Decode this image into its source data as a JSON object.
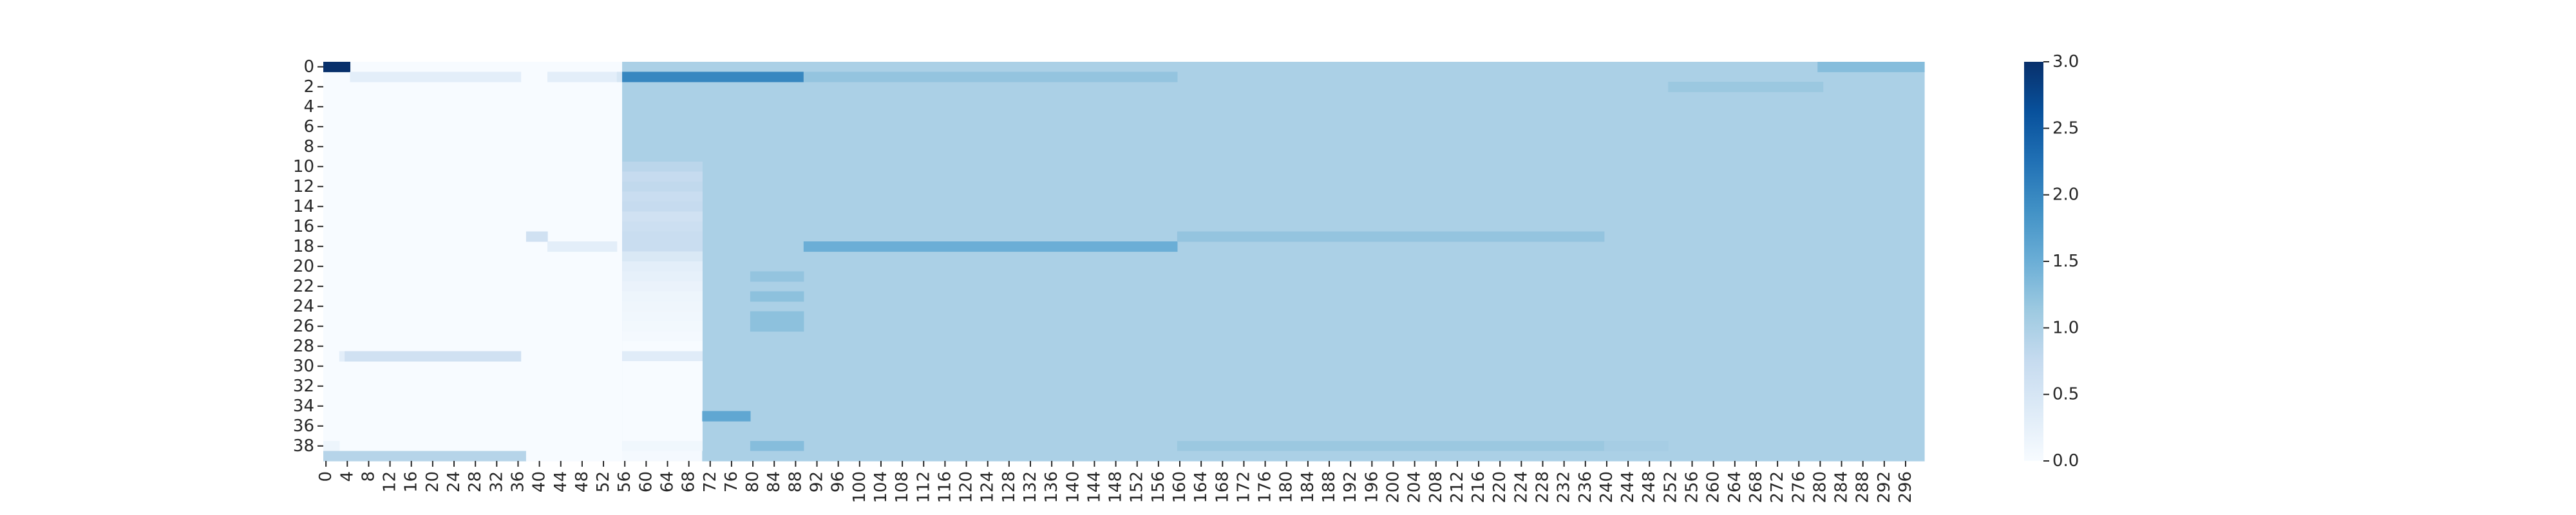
{
  "chart_data": {
    "type": "heatmap",
    "title": "",
    "xlabel": "",
    "ylabel": "",
    "n_rows": 40,
    "n_cols": 300,
    "x_tick_labels": [
      "0",
      "4",
      "8",
      "12",
      "16",
      "20",
      "24",
      "28",
      "32",
      "36",
      "40",
      "44",
      "48",
      "52",
      "56",
      "60",
      "64",
      "68",
      "72",
      "76",
      "80",
      "84",
      "88",
      "92",
      "96",
      "100",
      "104",
      "108",
      "112",
      "116",
      "120",
      "124",
      "128",
      "132",
      "136",
      "140",
      "144",
      "148",
      "152",
      "156",
      "160",
      "164",
      "168",
      "172",
      "176",
      "180",
      "184",
      "188",
      "192",
      "196",
      "200",
      "204",
      "208",
      "212",
      "216",
      "220",
      "224",
      "228",
      "232",
      "236",
      "240",
      "244",
      "248",
      "252",
      "256",
      "260",
      "264",
      "268",
      "272",
      "276",
      "280",
      "284",
      "288",
      "292",
      "296"
    ],
    "y_tick_labels": [
      "0",
      "2",
      "4",
      "6",
      "8",
      "10",
      "12",
      "14",
      "16",
      "18",
      "20",
      "22",
      "24",
      "26",
      "28",
      "30",
      "32",
      "34",
      "36",
      "38"
    ],
    "colorbar": {
      "min": 0.0,
      "max": 3.0,
      "ticks": [
        "0.0",
        "0.5",
        "1.0",
        "1.5",
        "2.0",
        "2.5",
        "3.0"
      ],
      "colormap": "Blues"
    },
    "background_value": 1.0,
    "cells": [
      {
        "row": [
          0,
          39
        ],
        "col": [
          0,
          56
        ],
        "value": 0.0
      },
      {
        "row": [
          0,
          39
        ],
        "col": [
          56,
          300
        ],
        "value": 1.0
      },
      {
        "row": [
          0,
          1
        ],
        "col": [
          0,
          5
        ],
        "value": 3.0
      },
      {
        "row": [
          1,
          2
        ],
        "col": [
          5,
          37
        ],
        "value": 0.3
      },
      {
        "row": [
          1,
          2
        ],
        "col": [
          42,
          55
        ],
        "value": 0.3
      },
      {
        "row": [
          1,
          2
        ],
        "col": [
          55,
          56
        ],
        "value": 0.5
      },
      {
        "row": [
          1,
          2
        ],
        "col": [
          56,
          90
        ],
        "value": 2.0
      },
      {
        "row": [
          1,
          2
        ],
        "col": [
          90,
          160
        ],
        "value": 1.2
      },
      {
        "row": [
          0,
          1
        ],
        "col": [
          280,
          300
        ],
        "value": 1.3
      },
      {
        "row": [
          2,
          3
        ],
        "col": [
          252,
          281
        ],
        "value": 1.15
      },
      {
        "row": [
          10,
          11
        ],
        "col": [
          56,
          71
        ],
        "value": 0.85
      },
      {
        "row": [
          11,
          12
        ],
        "col": [
          56,
          71
        ],
        "value": 0.75
      },
      {
        "row": [
          12,
          13
        ],
        "col": [
          56,
          71
        ],
        "value": 0.8
      },
      {
        "row": [
          13,
          14
        ],
        "col": [
          56,
          71
        ],
        "value": 0.7
      },
      {
        "row": [
          14,
          15
        ],
        "col": [
          56,
          71
        ],
        "value": 0.75
      },
      {
        "row": [
          15,
          16
        ],
        "col": [
          56,
          71
        ],
        "value": 0.6
      },
      {
        "row": [
          16,
          17
        ],
        "col": [
          56,
          71
        ],
        "value": 0.65
      },
      {
        "row": [
          17,
          19
        ],
        "col": [
          56,
          71
        ],
        "value": 0.7
      },
      {
        "row": [
          19,
          20
        ],
        "col": [
          56,
          71
        ],
        "value": 0.45
      },
      {
        "row": [
          20,
          21
        ],
        "col": [
          56,
          71
        ],
        "value": 0.3
      },
      {
        "row": [
          21,
          22
        ],
        "col": [
          56,
          71
        ],
        "value": 0.25
      },
      {
        "row": [
          22,
          23
        ],
        "col": [
          56,
          71
        ],
        "value": 0.2
      },
      {
        "row": [
          23,
          24
        ],
        "col": [
          56,
          71
        ],
        "value": 0.15
      },
      {
        "row": [
          24,
          25
        ],
        "col": [
          56,
          71
        ],
        "value": 0.12
      },
      {
        "row": [
          25,
          26
        ],
        "col": [
          56,
          71
        ],
        "value": 0.1
      },
      {
        "row": [
          26,
          27
        ],
        "col": [
          56,
          71
        ],
        "value": 0.08
      },
      {
        "row": [
          27,
          28
        ],
        "col": [
          56,
          71
        ],
        "value": 0.05
      },
      {
        "row": [
          28,
          29
        ],
        "col": [
          56,
          71
        ],
        "value": 0.0
      },
      {
        "row": [
          29,
          30
        ],
        "col": [
          56,
          71
        ],
        "value": 0.35
      },
      {
        "row": [
          30,
          38
        ],
        "col": [
          56,
          71
        ],
        "value": 0.0
      },
      {
        "row": [
          38,
          39
        ],
        "col": [
          56,
          71
        ],
        "value": 0.1
      },
      {
        "row": [
          17,
          18
        ],
        "col": [
          38,
          42
        ],
        "value": 0.6
      },
      {
        "row": [
          18,
          19
        ],
        "col": [
          42,
          55
        ],
        "value": 0.3
      },
      {
        "row": [
          18,
          19
        ],
        "col": [
          90,
          160
        ],
        "value": 1.5
      },
      {
        "row": [
          17,
          18
        ],
        "col": [
          160,
          240
        ],
        "value": 1.2
      },
      {
        "row": [
          21,
          22
        ],
        "col": [
          80,
          90
        ],
        "value": 1.2
      },
      {
        "row": [
          23,
          24
        ],
        "col": [
          80,
          90
        ],
        "value": 1.25
      },
      {
        "row": [
          25,
          27
        ],
        "col": [
          80,
          90
        ],
        "value": 1.25
      },
      {
        "row": [
          29,
          30
        ],
        "col": [
          3,
          4
        ],
        "value": 0.3
      },
      {
        "row": [
          29,
          30
        ],
        "col": [
          4,
          37
        ],
        "value": 0.6
      },
      {
        "row": [
          35,
          36
        ],
        "col": [
          71,
          80
        ],
        "value": 1.6
      },
      {
        "row": [
          38,
          39
        ],
        "col": [
          0,
          3
        ],
        "value": 0.15
      },
      {
        "row": [
          38,
          39
        ],
        "col": [
          80,
          90
        ],
        "value": 1.3
      },
      {
        "row": [
          38,
          39
        ],
        "col": [
          160,
          240
        ],
        "value": 1.15
      },
      {
        "row": [
          38,
          39
        ],
        "col": [
          240,
          252
        ],
        "value": 1.05
      },
      {
        "row": [
          39,
          40
        ],
        "col": [
          0,
          38
        ],
        "value": 0.9
      },
      {
        "row": [
          39,
          40
        ],
        "col": [
          38,
          56
        ],
        "value": 0.0
      },
      {
        "row": [
          39,
          40
        ],
        "col": [
          56,
          71
        ],
        "value": 0.05
      },
      {
        "row": [
          39,
          40
        ],
        "col": [
          71,
          300
        ],
        "value": 1.0
      }
    ]
  }
}
